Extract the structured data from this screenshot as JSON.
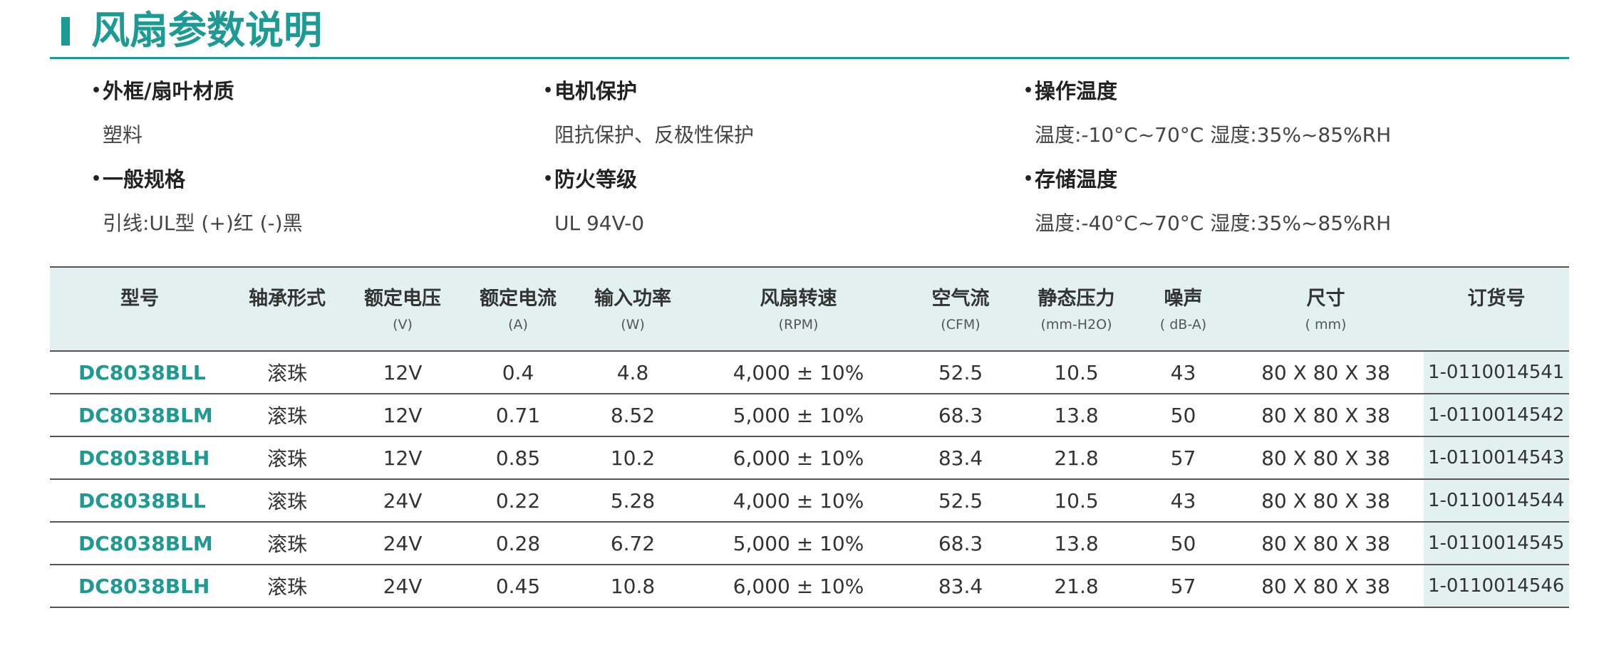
{
  "title": "风扇参数说明",
  "specs": [
    {
      "label": "外框/扇叶材质",
      "value": "塑料"
    },
    {
      "label": "电机保护",
      "value": "阻抗保护、反极性保护"
    },
    {
      "label": "操作温度",
      "value": "温度:-10°C~70°C    湿度:35%~85%RH"
    },
    {
      "label": "一般规格",
      "value": "引线:UL型  (+)红  (-)黑"
    },
    {
      "label": "防火等级",
      "value": "UL 94V-0"
    },
    {
      "label": "存储温度",
      "value": "温度:-40°C~70°C   湿度:35%~85%RH"
    }
  ],
  "table": {
    "headers": [
      {
        "label": "型号",
        "unit": ""
      },
      {
        "label": "轴承形式",
        "unit": ""
      },
      {
        "label": "额定电压",
        "unit": "(V)"
      },
      {
        "label": "额定电流",
        "unit": "(A)"
      },
      {
        "label": "输入功率",
        "unit": "(W)"
      },
      {
        "label": "风扇转速",
        "unit": "(RPM)"
      },
      {
        "label": "空气流",
        "unit": "(CFM)"
      },
      {
        "label": "静态压力",
        "unit": "(mm-H2O)"
      },
      {
        "label": "噪声",
        "unit": "( dB-A)"
      },
      {
        "label": "尺寸",
        "unit": "( mm)"
      },
      {
        "label": "订货号",
        "unit": ""
      }
    ],
    "rows": [
      [
        "DC8038BLL",
        "滚珠",
        "12V",
        "0.4",
        "4.8",
        "4,000 ± 10%",
        "52.5",
        "10.5",
        "43",
        "80 X 80 X 38",
        "1-0110014541"
      ],
      [
        "DC8038BLM",
        "滚珠",
        "12V",
        "0.71",
        "8.52",
        "5,000 ± 10%",
        "68.3",
        "13.8",
        "50",
        "80 X 80 X 38",
        "1-0110014542"
      ],
      [
        "DC8038BLH",
        "滚珠",
        "12V",
        "0.85",
        "10.2",
        "6,000 ± 10%",
        "83.4",
        "21.8",
        "57",
        "80 X 80 X 38",
        "1-0110014543"
      ],
      [
        "DC8038BLL",
        "滚珠",
        "24V",
        "0.22",
        "5.28",
        "4,000 ± 10%",
        "52.5",
        "10.5",
        "43",
        "80 X 80 X 38",
        "1-0110014544"
      ],
      [
        "DC8038BLM",
        "滚珠",
        "24V",
        "0.28",
        "6.72",
        "5,000 ± 10%",
        "68.3",
        "13.8",
        "50",
        "80 X 80 X 38",
        "1-0110014545"
      ],
      [
        "DC8038BLH",
        "滚珠",
        "24V",
        "0.45",
        "10.8",
        "6,000 ± 10%",
        "83.4",
        "21.8",
        "57",
        "80 X 80 X 38",
        "1-0110014546"
      ]
    ]
  },
  "colors": {
    "accent": "#1d9a93",
    "header_bg": "#e2f1ef",
    "rule": "#555555"
  }
}
